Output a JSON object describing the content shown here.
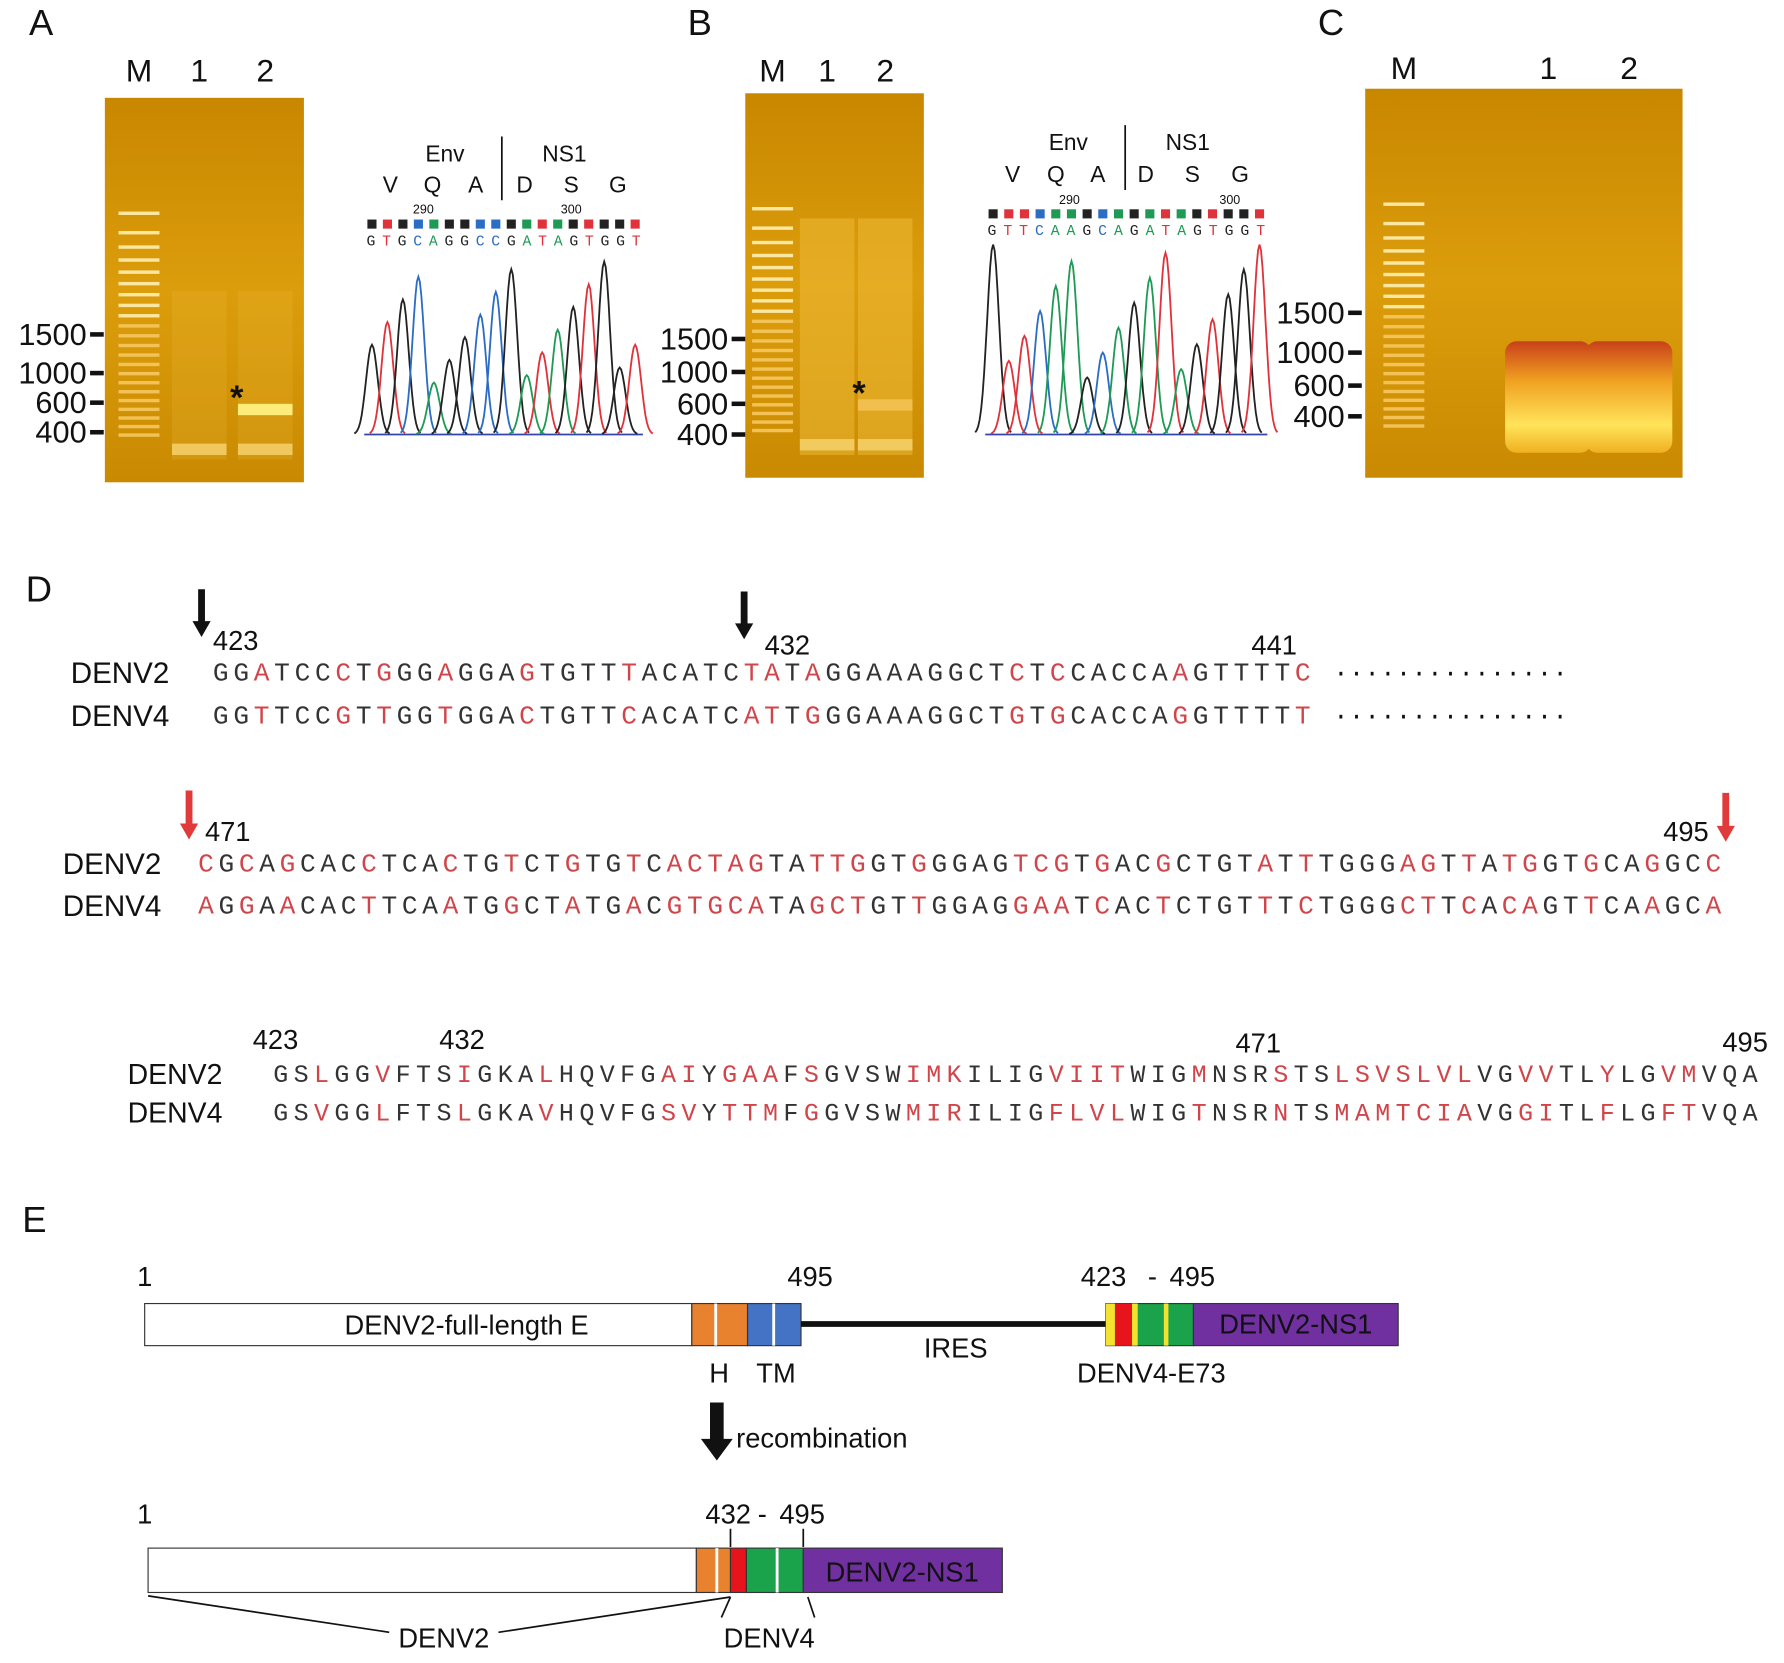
{
  "panels": [
    {
      "label": "A",
      "lanes": [
        "M",
        "1",
        "2"
      ],
      "markers": [
        1500,
        1000,
        600,
        400
      ],
      "star": "*",
      "trace": {
        "regions": [
          "Env",
          "NS1"
        ],
        "residues": [
          "V",
          "Q",
          "A",
          "D",
          "S",
          "G"
        ],
        "positions": [
          290,
          300
        ],
        "bases": "GTGCAGGCCGATAGTGGT"
      }
    },
    {
      "label": "B",
      "lanes": [
        "M",
        "1",
        "2"
      ],
      "markers": [
        1500,
        1000,
        600,
        400
      ],
      "star": "*",
      "trace": {
        "regions": [
          "Env",
          "NS1"
        ],
        "residues": [
          "V",
          "Q",
          "A",
          "D",
          "S",
          "G"
        ],
        "positions": [
          290,
          300
        ],
        "bases": "GTTCAAGCAGATAGTGGT"
      }
    },
    {
      "label": "C",
      "lanes": [
        "M",
        "1",
        "2"
      ],
      "markers": [
        1500,
        1000,
        600,
        400
      ]
    }
  ],
  "alignment": {
    "label": "D",
    "nucleotide_blocks": [
      {
        "positions": [
          423,
          432,
          441
        ],
        "rows": [
          {
            "name": "DENV2",
            "sequence": "GGATCCCTGGGAGGAGTGTTTACATCTATAGGAAAGGCTCTCCACCAAGTTTTC"
          },
          {
            "name": "DENV4",
            "sequence": "GGTTCCGTTGGTGGACTGTTCACATCATTGGGAAAGGCTGTGCACCAGGTTTTT"
          }
        ],
        "continuation": "..............."
      },
      {
        "positions": [
          471,
          495
        ],
        "rows": [
          {
            "name": "DENV2",
            "sequence": "CGCAGCACCTCACTGTCTGTGTCACTAGTATTGGTGGGAGTCGTGACGCTGTATTTGGGAGTTATGGTGCAGGCC"
          },
          {
            "name": "DENV4",
            "sequence": "AGGAACACTTCAATGGCTATGACGTGCATAGCTGTTGGAGGAATCACTCTGTTTCTGGGCTTCACAGTTCAAGCA"
          }
        ]
      }
    ],
    "protein_block": {
      "positions": [
        423,
        432,
        471,
        495
      ],
      "rows": [
        {
          "name": "DENV2",
          "sequence": "GSLGGVFTSIGKALHQVFGAIYGAAFSGVSWIMKILIGVIITWIGMNSRSTSLSVSLVLVGVVTLYLGVMVQA"
        },
        {
          "name": "DENV4",
          "sequence": "GSVGGLFTSLGKAVHQVFGSVYTTMFGGVSWMIRILIGFLVLWIGTNSRNTSMAMTCIAVGGITLFLGFTVQA"
        }
      ]
    }
  },
  "constructs": {
    "label": "E",
    "parental": {
      "start": 1,
      "end": 495,
      "gene": "DENV2-full-length E",
      "domains": [
        "H",
        "TM"
      ],
      "linker": "IRES",
      "insert_start": 423,
      "separator": "-",
      "insert_end": 495,
      "insert": "DENV4-E73",
      "fusion": "DENV2-NS1"
    },
    "step": "recombination",
    "recombinant": {
      "start": 1,
      "junction": 432,
      "separator": "-",
      "end": 495,
      "fusion": "DENV2-NS1",
      "origins": [
        "DENV2",
        "DENV4"
      ]
    }
  }
}
